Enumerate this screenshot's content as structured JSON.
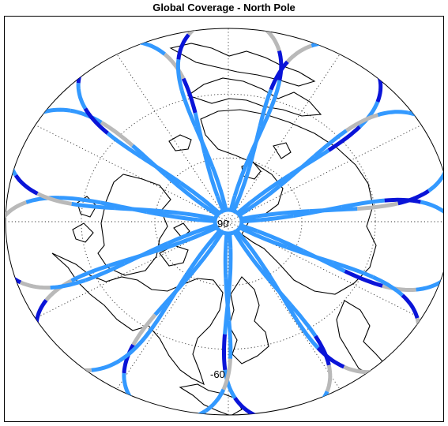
{
  "title": "Global Coverage - North Pole",
  "map": {
    "labels": {
      "pole": "90",
      "parallel": "-60"
    },
    "colors": {
      "frame": "#000000",
      "grid": "#333333",
      "coastline": "#000000",
      "track_dark": "#0a14d8",
      "track_light": "#3399ff",
      "track_gray": "#b9b9b9"
    }
  }
}
